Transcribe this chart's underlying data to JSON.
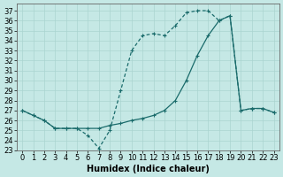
{
  "xlabel": "Humidex (Indice chaleur)",
  "ylabel": "",
  "background_color": "#c5e8e5",
  "grid_color": "#aad4d0",
  "line_color": "#1a6b6b",
  "xlim": [
    -0.5,
    23.5
  ],
  "ylim": [
    23,
    37.7
  ],
  "yticks": [
    23,
    24,
    25,
    26,
    27,
    28,
    29,
    30,
    31,
    32,
    33,
    34,
    35,
    36,
    37
  ],
  "xticks": [
    0,
    1,
    2,
    3,
    4,
    5,
    6,
    7,
    8,
    9,
    10,
    11,
    12,
    13,
    14,
    15,
    16,
    17,
    18,
    19,
    20,
    21,
    22,
    23
  ],
  "series_solid_x": [
    0,
    1,
    2,
    3,
    4,
    5,
    6,
    7,
    8,
    9,
    10,
    11,
    12,
    13,
    14,
    15,
    16,
    17,
    18,
    19,
    20,
    21,
    22,
    23
  ],
  "series_solid_y": [
    27.0,
    26.5,
    26.0,
    25.2,
    25.2,
    25.2,
    25.2,
    25.2,
    25.5,
    25.7,
    26.0,
    26.2,
    26.5,
    27.0,
    28.0,
    30.0,
    32.5,
    34.5,
    36.0,
    36.5,
    27.0,
    27.2,
    27.2,
    26.8
  ],
  "series_dashed_x": [
    0,
    1,
    2,
    3,
    4,
    5,
    6,
    7,
    8,
    9,
    10,
    11,
    12,
    13,
    14,
    15,
    16,
    17,
    18,
    19,
    20,
    21,
    22,
    23
  ],
  "series_dashed_y": [
    27.0,
    26.5,
    26.0,
    25.2,
    25.2,
    25.2,
    24.5,
    23.2,
    25.0,
    29.0,
    33.0,
    34.5,
    34.7,
    34.5,
    35.5,
    36.8,
    37.0,
    37.0,
    36.0,
    36.5,
    27.0,
    27.2,
    27.2,
    26.8
  ],
  "font_size": 6,
  "marker_size": 3,
  "linewidth": 0.9
}
